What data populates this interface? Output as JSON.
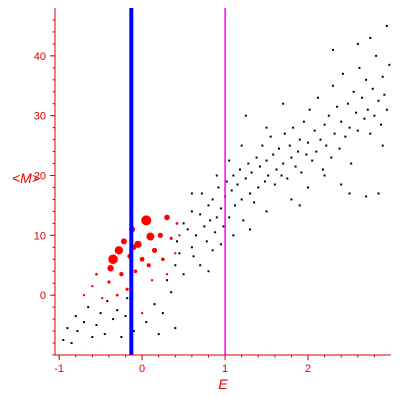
{
  "chart_data": {
    "type": "scatter",
    "xlabel": "E",
    "ylabel": "<M>",
    "xlim": [
      -1.05,
      3.0
    ],
    "ylim": [
      -10,
      48
    ],
    "x_ticks": [
      -1,
      0,
      1,
      2
    ],
    "y_ticks": [
      0,
      10,
      20,
      30,
      40
    ],
    "grid": false,
    "vertical_lines": [
      {
        "x": -0.13,
        "color": "#0000ff",
        "style": "thick"
      },
      {
        "x": 1.0,
        "color": "#ff00ff",
        "style": "thin"
      }
    ],
    "series": [
      {
        "color": "#000000",
        "marker": "dot",
        "points": [
          [
            -0.95,
            -7.5
          ],
          [
            -0.9,
            -5.5
          ],
          [
            -0.85,
            -8
          ],
          [
            -0.8,
            -3.5
          ],
          [
            -0.78,
            -6
          ],
          [
            -0.7,
            -4.5
          ],
          [
            -0.65,
            -2
          ],
          [
            -0.6,
            -7
          ],
          [
            -0.55,
            -5
          ],
          [
            -0.5,
            -3
          ],
          [
            -0.45,
            -6.5
          ],
          [
            -0.42,
            -1
          ],
          [
            -0.35,
            -4
          ],
          [
            -0.3,
            -2.5
          ],
          [
            -0.25,
            -7
          ],
          [
            -0.2,
            -3.5
          ],
          [
            -0.18,
            -0.5
          ],
          [
            -0.1,
            -6
          ],
          [
            0.05,
            -4.5
          ],
          [
            0.15,
            -1.5
          ],
          [
            0.25,
            -3
          ],
          [
            0.3,
            2.5
          ],
          [
            0.35,
            0.5
          ],
          [
            0.4,
            5
          ],
          [
            0.42,
            9
          ],
          [
            0.45,
            7
          ],
          [
            0.5,
            3.5
          ],
          [
            0.5,
            12
          ],
          [
            0.55,
            11
          ],
          [
            0.6,
            8
          ],
          [
            0.6,
            14
          ],
          [
            0.62,
            6.5
          ],
          [
            0.65,
            10
          ],
          [
            0.7,
            13.5
          ],
          [
            0.7,
            5
          ],
          [
            0.72,
            17
          ],
          [
            0.75,
            11.5
          ],
          [
            0.78,
            9
          ],
          [
            0.8,
            15
          ],
          [
            0.82,
            12.5
          ],
          [
            0.85,
            7.5
          ],
          [
            0.85,
            16
          ],
          [
            0.88,
            10.5
          ],
          [
            0.9,
            13
          ],
          [
            0.92,
            18
          ],
          [
            0.95,
            14.5
          ],
          [
            0.95,
            8.5
          ],
          [
            0.98,
            11.5
          ],
          [
            1.0,
            16.5
          ],
          [
            1.02,
            19
          ],
          [
            1.05,
            13
          ],
          [
            1.05,
            22.5
          ],
          [
            1.08,
            17.5
          ],
          [
            1.1,
            20
          ],
          [
            1.1,
            10
          ],
          [
            1.12,
            15
          ],
          [
            1.15,
            18.5
          ],
          [
            1.18,
            21
          ],
          [
            1.2,
            16
          ],
          [
            1.22,
            12.5
          ],
          [
            1.25,
            19.5
          ],
          [
            1.25,
            30
          ],
          [
            1.28,
            22
          ],
          [
            1.3,
            17
          ],
          [
            1.32,
            20.5
          ],
          [
            1.35,
            15.5
          ],
          [
            1.38,
            23
          ],
          [
            1.4,
            18
          ],
          [
            1.42,
            21.5
          ],
          [
            1.45,
            25
          ],
          [
            1.48,
            19
          ],
          [
            1.5,
            22.5
          ],
          [
            1.5,
            14
          ],
          [
            1.52,
            20
          ],
          [
            1.55,
            26.5
          ],
          [
            1.58,
            23.5
          ],
          [
            1.6,
            18.5
          ],
          [
            1.62,
            21
          ],
          [
            1.65,
            24.5
          ],
          [
            1.68,
            20
          ],
          [
            1.7,
            22
          ],
          [
            1.72,
            27
          ],
          [
            1.75,
            19.5
          ],
          [
            1.78,
            25
          ],
          [
            1.8,
            23
          ],
          [
            1.8,
            16
          ],
          [
            1.82,
            28
          ],
          [
            1.85,
            21.5
          ],
          [
            1.88,
            24
          ],
          [
            1.9,
            26
          ],
          [
            1.92,
            20.5
          ],
          [
            1.95,
            29
          ],
          [
            1.98,
            23.5
          ],
          [
            2.0,
            25.5
          ],
          [
            2.0,
            18
          ],
          [
            2.02,
            31
          ],
          [
            2.05,
            22.5
          ],
          [
            2.08,
            27.5
          ],
          [
            2.1,
            24
          ],
          [
            2.12,
            33
          ],
          [
            2.15,
            26
          ],
          [
            2.18,
            21
          ],
          [
            2.2,
            28.5
          ],
          [
            2.22,
            25
          ],
          [
            2.25,
            30
          ],
          [
            2.28,
            23
          ],
          [
            2.3,
            35
          ],
          [
            2.32,
            27
          ],
          [
            2.35,
            31.5
          ],
          [
            2.38,
            24.5
          ],
          [
            2.4,
            29
          ],
          [
            2.42,
            37
          ],
          [
            2.45,
            26.5
          ],
          [
            2.48,
            32
          ],
          [
            2.5,
            28
          ],
          [
            2.52,
            22
          ],
          [
            2.55,
            34
          ],
          [
            2.58,
            30.5
          ],
          [
            2.6,
            27.5
          ],
          [
            2.62,
            38
          ],
          [
            2.65,
            33
          ],
          [
            2.68,
            29.5
          ],
          [
            2.7,
            36
          ],
          [
            2.72,
            31
          ],
          [
            2.75,
            27
          ],
          [
            2.78,
            34.5
          ],
          [
            2.8,
            30
          ],
          [
            2.82,
            40
          ],
          [
            2.85,
            32.5
          ],
          [
            2.88,
            28.5
          ],
          [
            2.9,
            36.5
          ],
          [
            2.92,
            33.5
          ],
          [
            2.95,
            31
          ],
          [
            2.98,
            38.5
          ],
          [
            2.7,
            16.5
          ],
          [
            2.5,
            17
          ],
          [
            2.2,
            20
          ],
          [
            1.9,
            15
          ],
          [
            2.6,
            42
          ],
          [
            2.95,
            45
          ],
          [
            2.3,
            41
          ],
          [
            2.75,
            43
          ],
          [
            1.7,
            32
          ],
          [
            1.5,
            28
          ],
          [
            1.2,
            25
          ],
          [
            0.9,
            20
          ],
          [
            0.6,
            17
          ],
          [
            0.4,
            -5.5
          ],
          [
            0.2,
            -6.5
          ],
          [
            0.8,
            4
          ],
          [
            1.3,
            11
          ],
          [
            2.85,
            17
          ],
          [
            2.4,
            18.5
          ],
          [
            2.9,
            25
          ]
        ]
      },
      {
        "color": "#ff0000",
        "marker": "circle-weighted",
        "points": [
          [
            -0.35,
            6,
            4.8
          ],
          [
            -0.28,
            7.5,
            4.2
          ],
          [
            -0.38,
            4.5,
            3.2
          ],
          [
            -0.22,
            9,
            3.0
          ],
          [
            -0.12,
            11,
            3.0
          ],
          [
            0.05,
            12.5,
            5.0
          ],
          [
            0.1,
            9.8,
            4.0
          ],
          [
            -0.05,
            8.5,
            3.6
          ],
          [
            -0.15,
            6.5,
            2.4
          ],
          [
            -0.25,
            3.5,
            2.2
          ],
          [
            0.0,
            6,
            2.4
          ],
          [
            0.08,
            5,
            2.0
          ],
          [
            0.22,
            10,
            2.6
          ],
          [
            0.15,
            7.5,
            2.6
          ],
          [
            -0.08,
            4,
            1.8
          ],
          [
            0.3,
            13,
            2.8
          ],
          [
            -0.4,
            2.2,
            1.6
          ],
          [
            -0.55,
            3.5,
            1.4
          ],
          [
            -0.48,
            -0.5,
            1.2
          ],
          [
            -0.7,
            0,
            1.2
          ],
          [
            -0.18,
            1,
            1.6
          ],
          [
            0.25,
            6,
            1.8
          ],
          [
            0.35,
            9.5,
            1.6
          ],
          [
            0.42,
            12,
            1.4
          ],
          [
            0.12,
            2.5,
            1.2
          ],
          [
            -0.3,
            0,
            1.4
          ],
          [
            0.4,
            7,
            1.2
          ],
          [
            0.0,
            -3,
            1.2
          ],
          [
            0.3,
            3.5,
            1.2
          ],
          [
            -0.6,
            1.5,
            1.2
          ],
          [
            0.45,
            10,
            1.2
          ],
          [
            -0.1,
            8,
            2.6
          ]
        ]
      }
    ]
  }
}
